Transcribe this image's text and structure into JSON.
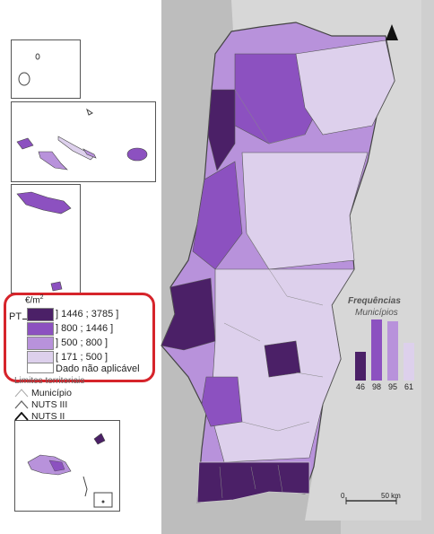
{
  "legend": {
    "unit": "€/m",
    "unit_sup": "2",
    "pt_label": "PT",
    "classes": [
      {
        "label": "] 1446 ; 3785 ]",
        "color": "#4b2067"
      },
      {
        "label": "] 800 ; 1446 ]",
        "color": "#8c51c0"
      },
      {
        "label": "] 500 ; 800 ]",
        "color": "#b892db"
      },
      {
        "label": "[ 171 ; 500 ]",
        "color": "#ddd0ec"
      },
      {
        "label": "Dado não aplicável",
        "color": "#ffffff"
      }
    ]
  },
  "limits": {
    "title": "Limites territoriais",
    "items": [
      {
        "label": "Município",
        "color": "#aaaaaa"
      },
      {
        "label": "NUTS III",
        "color": "#666666"
      },
      {
        "label": "NUTS II",
        "color": "#111111"
      }
    ]
  },
  "frequencies": {
    "title": "Frequências",
    "subtitle": "Municípios",
    "values": [
      46,
      98,
      95,
      61
    ],
    "colors": [
      "#4b2067",
      "#8c51c0",
      "#b892db",
      "#ddd0ec"
    ]
  },
  "scale": {
    "zero": "0",
    "end": "50 km"
  }
}
